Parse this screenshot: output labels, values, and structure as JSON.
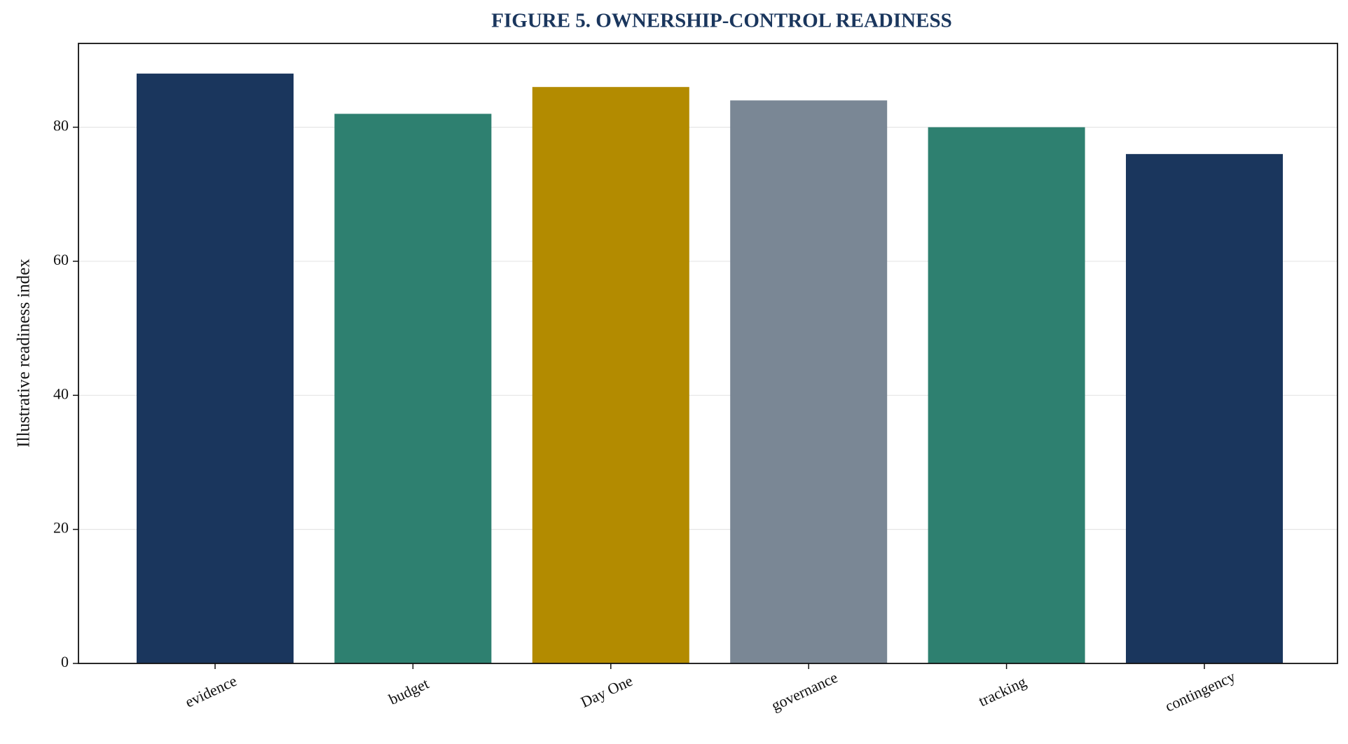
{
  "chart_data": {
    "type": "bar",
    "title": "FIGURE 5. OWNERSHIP-CONTROL READINESS",
    "y_label": "Illustrative readiness index",
    "categories": [
      "evidence",
      "budget",
      "Day One",
      "governance",
      "tracking",
      "contingency"
    ],
    "values": [
      88,
      82,
      86,
      84,
      80,
      76
    ],
    "colors": [
      "#1a365d",
      "#2e8070",
      "#b38b00",
      "#7a8795",
      "#2e8070",
      "#1a365d"
    ],
    "ylim": [
      0,
      92.5
    ],
    "yticks": [
      0,
      20,
      40,
      60,
      80
    ],
    "grid": true
  }
}
